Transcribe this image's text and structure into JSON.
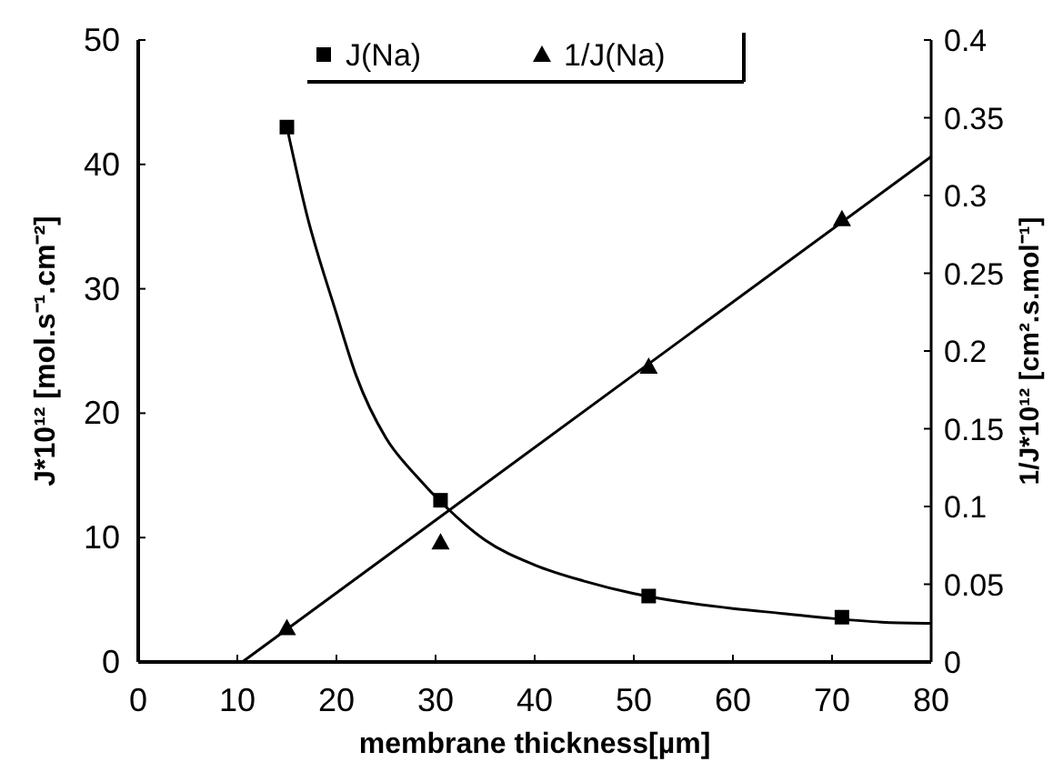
{
  "chart_data": {
    "type": "scatter",
    "xlabel": "membrane thickness[µm]",
    "ylabel": "J*10¹²  [mol.s⁻¹.cm⁻²]",
    "y2label": "1/J*10¹²  [cm².s.mol⁻¹]",
    "xlim": [
      0,
      80
    ],
    "xticks": [
      0,
      10,
      20,
      30,
      40,
      50,
      60,
      70,
      80
    ],
    "ylim": [
      0,
      50
    ],
    "yticks": [
      0,
      10,
      20,
      30,
      40,
      50
    ],
    "y2lim": [
      0,
      0.4
    ],
    "y2ticks": [
      0,
      0.05,
      0.1,
      0.15,
      0.2,
      0.25,
      0.3,
      0.35,
      0.4
    ],
    "legend": "top",
    "series": [
      {
        "name": "J(Na)",
        "marker": "square",
        "color": "#000000",
        "x": [
          15,
          30.5,
          51.5,
          71
        ],
        "values": [
          43,
          13,
          5.3,
          3.6
        ]
      },
      {
        "type": "line",
        "marker": "none",
        "color": "#000000",
        "x": [
          15,
          17,
          20,
          22,
          25,
          28,
          31,
          35,
          40,
          45,
          50,
          55,
          60,
          65,
          70,
          75,
          80
        ],
        "values": [
          43,
          36,
          28,
          23,
          18,
          15,
          12.5,
          9.8,
          7.8,
          6.5,
          5.5,
          4.8,
          4.3,
          3.9,
          3.5,
          3.2,
          3.1
        ]
      },
      {
        "name": "1/J(Na)",
        "marker": "triangle",
        "color": "#000000",
        "axis": "y2",
        "x": [
          15,
          30.5,
          51.5,
          71
        ],
        "values": [
          0.022,
          0.077,
          0.19,
          0.285
        ]
      },
      {
        "type": "line",
        "marker": "none",
        "color": "#000000",
        "axis": "y2",
        "x": [
          10.5,
          80
        ],
        "values": [
          0,
          0.325
        ]
      }
    ]
  }
}
